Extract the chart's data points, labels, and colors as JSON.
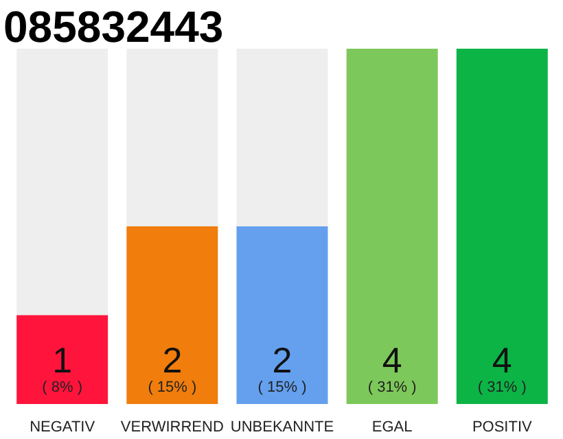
{
  "chart_data": {
    "type": "bar",
    "title": "085832443",
    "categories": [
      "NEGATIV",
      "VERWIRREND",
      "UNBEKANNTE",
      "EGAL",
      "POSITIV"
    ],
    "values": [
      1,
      2,
      2,
      4,
      4
    ],
    "colors": [
      "#ff143c",
      "#f07d0c",
      "#64a0ee",
      "#7dc85a",
      "#0cb446"
    ],
    "ylim": [
      0,
      4
    ],
    "tick_labels": "x",
    "grid": false,
    "data_labels": true,
    "bands": [
      {
        "axis": "y",
        "from": 0,
        "to": 4,
        "color": "#eeeeee"
      }
    ],
    "annotations": [
      "( 8% )",
      "( 15% )",
      "( 15% )",
      "( 31% )",
      "( 31% )"
    ]
  }
}
